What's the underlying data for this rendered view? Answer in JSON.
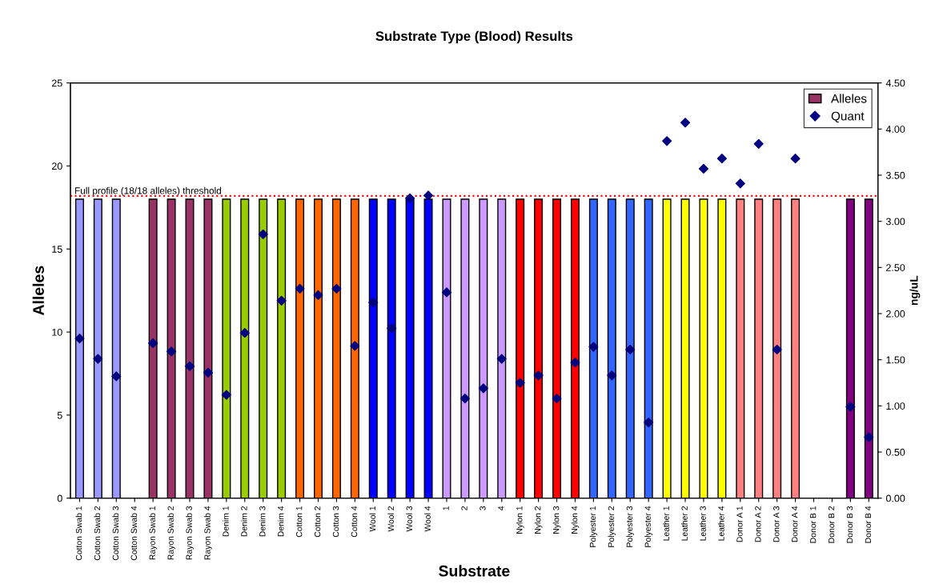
{
  "chart_data": {
    "type": "bar",
    "title": "Substrate Type (Blood) Results",
    "xlabel": "Substrate",
    "ylabel": "Alleles",
    "y2label": "ng/uL",
    "categories": [
      "Cotton Swab 1",
      "Cotton Swab 2",
      "Cotton Swab 3",
      "Cotton Swab 4",
      "Rayon Swab 1",
      "Rayon Swab 2",
      "Rayon Swab 3",
      "Rayon Swab 4",
      "Denim 1",
      "Denim 2",
      "Denim 3",
      "Denim 4",
      "Cotton 1",
      "Cotton 2",
      "Cotton 3",
      "Cotton 4",
      "Wool 1",
      "Wool 2",
      "Wool 3",
      "Wool 4",
      "1",
      "2",
      "3",
      "4",
      "Nylon 1",
      "Nylon 2",
      "Nylon 3",
      "Nylon 4",
      "Polyester 1",
      "Polyester 2",
      "Polyester 3",
      "Polyester 4",
      "Leather 1",
      "Leather 2",
      "Leather 3",
      "Leather 4",
      "Donor A 1",
      "Donor A 2",
      "Donor A 3",
      "Donor A 4",
      "Donor B 1",
      "Donor B 2",
      "Donor B 3",
      "Donor B 4"
    ],
    "series": [
      {
        "name": "Alleles",
        "color": "#993366",
        "values": [
          18,
          18,
          18,
          null,
          18,
          18,
          18,
          18,
          18,
          18,
          18,
          18,
          18,
          18,
          18,
          18,
          18,
          18,
          18,
          18,
          18,
          18,
          18,
          18,
          18,
          18,
          18,
          18,
          18,
          18,
          18,
          18,
          18,
          18,
          18,
          18,
          18,
          18,
          18,
          18,
          null,
          null,
          18,
          18
        ],
        "colors": [
          "#9999ff",
          "#9999ff",
          "#9999ff",
          "#9999ff",
          "#993366",
          "#993366",
          "#993366",
          "#993366",
          "#99cc00",
          "#99cc00",
          "#99cc00",
          "#99cc00",
          "#ff6600",
          "#ff6600",
          "#ff6600",
          "#ff6600",
          "#0000ff",
          "#0000ff",
          "#0000ff",
          "#0000ff",
          "#cc99ff",
          "#cc99ff",
          "#cc99ff",
          "#cc99ff",
          "#ff0000",
          "#ff0000",
          "#ff0000",
          "#ff0000",
          "#3366ff",
          "#3366ff",
          "#3366ff",
          "#3366ff",
          "#ffff00",
          "#ffff00",
          "#ffff00",
          "#ffff00",
          "#ff8080",
          "#ff8080",
          "#ff8080",
          "#ff8080",
          "#800080",
          "#800080",
          "#800080",
          "#800080"
        ]
      },
      {
        "name": "Quant",
        "type": "scatter",
        "axis": "y2",
        "marker": "diamond",
        "color": "#000080",
        "values": [
          1.73,
          1.51,
          1.32,
          null,
          1.68,
          1.59,
          1.43,
          1.36,
          1.12,
          1.79,
          2.86,
          2.14,
          2.27,
          2.2,
          2.27,
          1.65,
          2.12,
          1.84,
          3.25,
          3.28,
          2.23,
          1.08,
          1.19,
          1.51,
          1.25,
          1.33,
          1.08,
          1.47,
          1.64,
          1.33,
          1.61,
          0.82,
          3.87,
          4.07,
          3.57,
          3.68,
          3.41,
          3.84,
          1.61,
          3.68,
          null,
          null,
          0.99,
          0.66
        ]
      }
    ],
    "ylim": [
      0,
      25
    ],
    "yticks": [
      0,
      5,
      10,
      15,
      20,
      25
    ],
    "y2lim": [
      0,
      4.5
    ],
    "y2ticks": [
      {
        "value": 0,
        "label": "0.00"
      },
      {
        "value": 0.5,
        "label": "0.50"
      },
      {
        "value": 1,
        "label": "1.00"
      },
      {
        "value": 1.5,
        "label": "1.50"
      },
      {
        "value": 2,
        "label": "2.00"
      },
      {
        "value": 2.5,
        "label": "2.50"
      },
      {
        "value": 3,
        "label": "3.00"
      },
      {
        "value": 3.5,
        "label": "3.50"
      },
      {
        "value": 4,
        "label": "4.00"
      },
      {
        "value": 4.5,
        "label": "4.50"
      }
    ],
    "ref_lines": [
      {
        "axis": "y",
        "value": 18.2,
        "label": "Full profile (18/18 alleles) threshold",
        "color": "#ff0000",
        "line_style": "dotted"
      }
    ],
    "legend": "top right",
    "grid": false
  }
}
